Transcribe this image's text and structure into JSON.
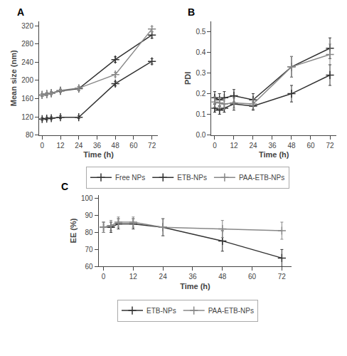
{
  "chart_data": [
    {
      "type": "line",
      "title": "A",
      "xlabel": "Time (h)",
      "ylabel": "Mean size (nm)",
      "x": [
        0,
        3,
        6,
        12,
        24,
        48,
        72
      ],
      "xlim": [
        -2,
        76
      ],
      "xticks": [
        0,
        12,
        24,
        36,
        48,
        60,
        72
      ],
      "ylim": [
        80,
        330
      ],
      "yticks": [
        80,
        120,
        160,
        200,
        240,
        280,
        320
      ],
      "grid": false,
      "legend": "bottom",
      "marker": "plus",
      "line_style": "solid",
      "series": [
        {
          "name": "Free NPs",
          "color": "#333333",
          "values": [
            115,
            116,
            117,
            119,
            119,
            193,
            242
          ],
          "errors": [
            3,
            3,
            3,
            3,
            3,
            5,
            6
          ]
        },
        {
          "name": "ETB-NPs",
          "color": "#333333",
          "values": [
            168,
            170,
            172,
            177,
            182,
            246,
            300
          ],
          "errors": [
            3,
            3,
            3,
            3,
            4,
            6,
            7
          ]
        },
        {
          "name": "PAA-ETB-NPs",
          "color": "#888888",
          "values": [
            168,
            170,
            172,
            178,
            183,
            213,
            313
          ],
          "errors": [
            3,
            3,
            3,
            3,
            4,
            5,
            6
          ]
        }
      ]
    },
    {
      "type": "line",
      "title": "B",
      "xlabel": "Time (h)",
      "ylabel": "PDI",
      "x": [
        0,
        3,
        6,
        12,
        24,
        48,
        72
      ],
      "xlim": [
        -2,
        76
      ],
      "xticks": [
        0,
        12,
        24,
        36,
        48,
        60,
        72
      ],
      "ylim": [
        0,
        0.55
      ],
      "yticks": [
        {
          "value": 0,
          "label": "0.0"
        },
        0.1,
        0.2,
        0.3,
        0.4,
        0.5
      ],
      "grid": false,
      "marker": "plus",
      "line_style": "solid",
      "series": [
        {
          "name": "Free NPs",
          "color": "#333333",
          "values": [
            0.13,
            0.12,
            0.13,
            0.15,
            0.14,
            0.2,
            0.29
          ],
          "errors": [
            0.02,
            0.02,
            0.02,
            0.03,
            0.02,
            0.04,
            0.05
          ]
        },
        {
          "name": "ETB-NPs",
          "color": "#333333",
          "values": [
            0.18,
            0.17,
            0.18,
            0.19,
            0.17,
            0.33,
            0.42
          ],
          "errors": [
            0.03,
            0.03,
            0.03,
            0.03,
            0.03,
            0.05,
            0.05
          ]
        },
        {
          "name": "PAA-ETB-NPs",
          "color": "#888888",
          "values": [
            0.16,
            0.155,
            0.15,
            0.155,
            0.15,
            0.33,
            0.39
          ],
          "errors": [
            0.025,
            0.025,
            0.025,
            0.025,
            0.025,
            0.05,
            0.05
          ]
        }
      ]
    },
    {
      "type": "line",
      "title": "C",
      "xlabel": "Time (h)",
      "ylabel": "EE (%)",
      "x": [
        0,
        3,
        6,
        12,
        24,
        48,
        72
      ],
      "xlim": [
        -2,
        76
      ],
      "xticks": [
        0,
        12,
        24,
        36,
        48,
        60,
        72
      ],
      "ylim": [
        60,
        102
      ],
      "yticks": [
        60,
        70,
        80,
        90,
        100
      ],
      "grid": false,
      "legend": "bottom",
      "marker": "plus",
      "line_style": "solid",
      "series": [
        {
          "name": "ETB-NPs",
          "color": "#333333",
          "values": [
            83,
            83,
            85,
            85,
            83,
            75,
            65
          ],
          "errors": [
            3,
            3,
            3,
            3,
            5,
            6,
            5
          ]
        },
        {
          "name": "PAA-ETB-NPs",
          "color": "#888888",
          "values": [
            83,
            84,
            86,
            86,
            83,
            82,
            81
          ],
          "errors": [
            3,
            3,
            3,
            3,
            5,
            5,
            5
          ]
        }
      ]
    }
  ]
}
